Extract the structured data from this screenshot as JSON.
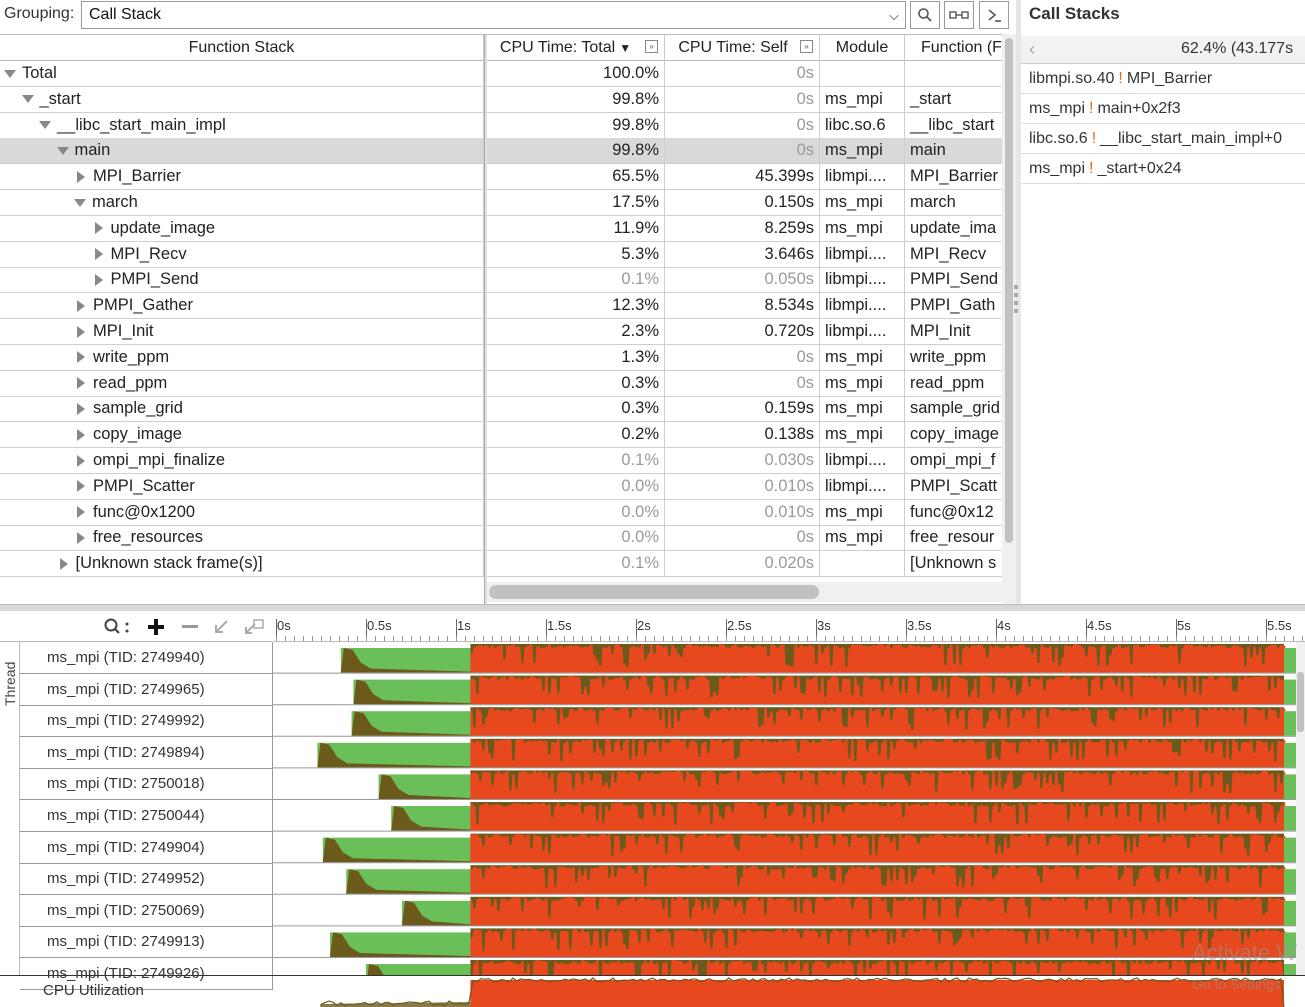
{
  "toolbar": {
    "grouping_label": "Grouping:",
    "grouping_value": "Call Stack",
    "search_icon": "search-icon",
    "filter_icon": "chain-icon",
    "console_icon": "console-icon"
  },
  "grid": {
    "columns": {
      "function_stack": "Function Stack",
      "cpu_total": "CPU Time: Total",
      "cpu_self": "CPU Time: Self",
      "module": "Module",
      "function": "Function (F"
    },
    "rows": [
      {
        "name": "Total",
        "total": "100.0%",
        "self": "0s",
        "module": "",
        "function": "",
        "depth": 0,
        "expanded": true,
        "dim": false,
        "dim_total": false,
        "dim_self": true
      },
      {
        "name": "_start",
        "total": "99.8%",
        "self": "0s",
        "module": "ms_mpi",
        "function": "_start",
        "depth": 1,
        "expanded": true,
        "dim_total": false,
        "dim_self": true
      },
      {
        "name": "__libc_start_main_impl",
        "total": "99.8%",
        "self": "0s",
        "module": "libc.so.6",
        "function": "__libc_start",
        "depth": 2,
        "expanded": true,
        "dim_total": false,
        "dim_self": true
      },
      {
        "name": "main",
        "total": "99.8%",
        "self": "0s",
        "module": "ms_mpi",
        "function": "main",
        "depth": 3,
        "expanded": true,
        "selected": true,
        "dim_total": false,
        "dim_self": true
      },
      {
        "name": "MPI_Barrier",
        "total": "65.5%",
        "self": "45.399s",
        "module": "libmpi....",
        "function": "MPI_Barrier",
        "depth": 4,
        "expanded": false,
        "dim_total": false,
        "dim_self": false
      },
      {
        "name": "march",
        "total": "17.5%",
        "self": "0.150s",
        "module": "ms_mpi",
        "function": "march",
        "depth": 4,
        "expanded": true,
        "dim_total": false,
        "dim_self": false
      },
      {
        "name": "update_image",
        "total": "11.9%",
        "self": "8.259s",
        "module": "ms_mpi",
        "function": "update_ima",
        "depth": 5,
        "expanded": false,
        "dim_total": false,
        "dim_self": false
      },
      {
        "name": "MPI_Recv",
        "total": "5.3%",
        "self": "3.646s",
        "module": "libmpi....",
        "function": "MPI_Recv",
        "depth": 5,
        "expanded": false,
        "dim_total": false,
        "dim_self": false
      },
      {
        "name": "PMPI_Send",
        "total": "0.1%",
        "self": "0.050s",
        "module": "libmpi....",
        "function": "PMPI_Send",
        "depth": 5,
        "expanded": false,
        "dim_total": true,
        "dim_self": true
      },
      {
        "name": "PMPI_Gather",
        "total": "12.3%",
        "self": "8.534s",
        "module": "libmpi....",
        "function": "PMPI_Gath",
        "depth": 4,
        "expanded": false,
        "dim_total": false,
        "dim_self": false
      },
      {
        "name": "MPI_Init",
        "total": "2.3%",
        "self": "0.720s",
        "module": "libmpi....",
        "function": "MPI_Init",
        "depth": 4,
        "expanded": false,
        "dim_total": false,
        "dim_self": false
      },
      {
        "name": "write_ppm",
        "total": "1.3%",
        "self": "0s",
        "module": "ms_mpi",
        "function": "write_ppm",
        "depth": 4,
        "expanded": false,
        "dim_total": false,
        "dim_self": true
      },
      {
        "name": "read_ppm",
        "total": "0.3%",
        "self": "0s",
        "module": "ms_mpi",
        "function": "read_ppm",
        "depth": 4,
        "expanded": false,
        "dim_total": false,
        "dim_self": true
      },
      {
        "name": "sample_grid",
        "total": "0.3%",
        "self": "0.159s",
        "module": "ms_mpi",
        "function": "sample_grid",
        "depth": 4,
        "expanded": false,
        "dim_total": false,
        "dim_self": false
      },
      {
        "name": "copy_image",
        "total": "0.2%",
        "self": "0.138s",
        "module": "ms_mpi",
        "function": "copy_image",
        "depth": 4,
        "expanded": false,
        "dim_total": false,
        "dim_self": false
      },
      {
        "name": "ompi_mpi_finalize",
        "total": "0.1%",
        "self": "0.030s",
        "module": "libmpi....",
        "function": "ompi_mpi_f",
        "depth": 4,
        "expanded": false,
        "dim_total": true,
        "dim_self": true
      },
      {
        "name": "PMPI_Scatter",
        "total": "0.0%",
        "self": "0.010s",
        "module": "libmpi....",
        "function": "PMPI_Scatt",
        "depth": 4,
        "expanded": false,
        "dim_total": true,
        "dim_self": true
      },
      {
        "name": "func@0x1200",
        "total": "0.0%",
        "self": "0.010s",
        "module": "ms_mpi",
        "function": "func@0x12",
        "depth": 4,
        "expanded": false,
        "dim_total": true,
        "dim_self": true
      },
      {
        "name": "free_resources",
        "total": "0.0%",
        "self": "0s",
        "module": "ms_mpi",
        "function": "free_resour",
        "depth": 4,
        "expanded": false,
        "dim_total": true,
        "dim_self": true
      },
      {
        "name": "[Unknown stack frame(s)]",
        "total": "0.1%",
        "self": "0.020s",
        "module": "",
        "function": "[Unknown s",
        "depth": 3,
        "expanded": false,
        "dim_total": true,
        "dim_self": true
      }
    ]
  },
  "call_stacks": {
    "title": "Call Stacks",
    "percent": "62.4% (43.177s",
    "frames": [
      {
        "module": "libmpi.so.40",
        "func": "MPI_Barrier"
      },
      {
        "module": "ms_mpi",
        "func": "main+0x2f3"
      },
      {
        "module": "libc.so.6",
        "func": "__libc_start_main_impl+0"
      },
      {
        "module": "ms_mpi",
        "func": "_start+0x24"
      }
    ]
  },
  "timeline": {
    "axis_label": "Thread",
    "ticks": [
      "0s",
      "0.5s",
      "1s",
      "1.5s",
      "2s",
      "2.5s",
      "3s",
      "3.5s",
      "4s",
      "4.5s",
      "5s",
      "5.5s"
    ],
    "threads": [
      {
        "label": "ms_mpi (TID: 2749940)",
        "start_s": 0.36
      },
      {
        "label": "ms_mpi (TID: 2749965)",
        "start_s": 0.43
      },
      {
        "label": "ms_mpi (TID: 2749992)",
        "start_s": 0.42
      },
      {
        "label": "ms_mpi (TID: 2749894)",
        "start_s": 0.23
      },
      {
        "label": "ms_mpi (TID: 2750018)",
        "start_s": 0.57
      },
      {
        "label": "ms_mpi (TID: 2750044)",
        "start_s": 0.64
      },
      {
        "label": "ms_mpi (TID: 2749904)",
        "start_s": 0.26
      },
      {
        "label": "ms_mpi (TID: 2749952)",
        "start_s": 0.39
      },
      {
        "label": "ms_mpi (TID: 2750069)",
        "start_s": 0.7
      },
      {
        "label": "ms_mpi (TID: 2749913)",
        "start_s": 0.3
      },
      {
        "label": "ms_mpi (TID: 2749926)",
        "start_s": 0.5
      }
    ],
    "compute_start_s": 1.08,
    "compute_end_s": 5.6,
    "colors": {
      "idle": "#6bbf59",
      "spin": "#e8481d",
      "wait": "#6b5a1c"
    },
    "cpu_label": "CPU Utilization"
  },
  "watermark": {
    "line1": "Activate W",
    "line2": "Go to Settings"
  }
}
